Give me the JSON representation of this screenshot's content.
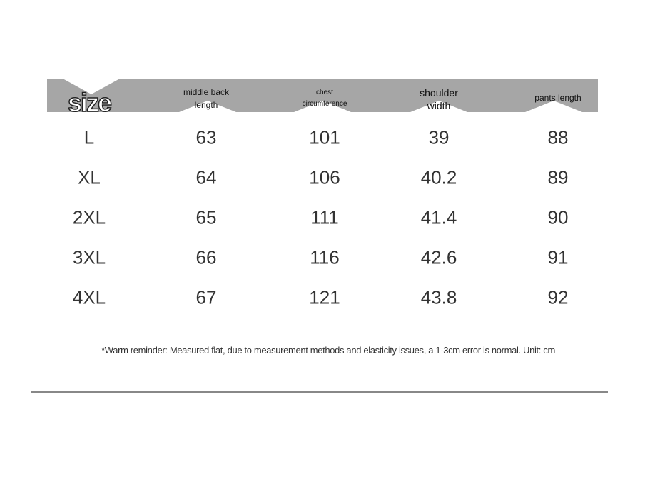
{
  "table": {
    "header": [
      [
        "size"
      ],
      [
        "middle back",
        "length"
      ],
      [
        "chest",
        "circumference"
      ],
      [
        "shoulder",
        "width"
      ],
      [
        "pants length"
      ]
    ],
    "rows": [
      [
        "L",
        63,
        101,
        39,
        88
      ],
      [
        "XL",
        64,
        106,
        40.2,
        89
      ],
      [
        "2XL",
        65,
        111,
        41.4,
        90
      ],
      [
        "3XL",
        66,
        116,
        42.6,
        91
      ],
      [
        "4XL",
        67,
        121,
        43.8,
        92
      ]
    ]
  },
  "note": "*Warm reminder: Measured flat, due to measurement methods and elasticity issues, a 1-3cm error is normal. Unit: cm"
}
